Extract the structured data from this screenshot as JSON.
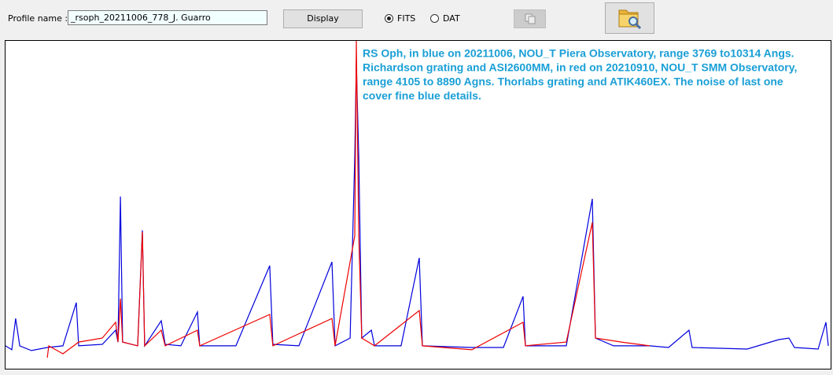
{
  "form": {
    "profile_label": "Profile name :",
    "profile_value": "_rsoph_20211006_778_J. Guarro",
    "display_button": "Display",
    "format_options": [
      "FITS",
      "DAT"
    ],
    "selected_format": "FITS"
  },
  "chart_data": {
    "type": "line",
    "annotation": [
      "RS Oph, in blue on 20211006, NOU_T Piera Observatory, range 3769 to10314 Angs.",
      "Richardson grating and ASI2600MM, in red on 20210910, NOU_T SMM Observatory,",
      "range 4105 to 8890 Agns. Thorlabs grating and ATIK460EX. The noise of last one",
      "cover fine  blue details."
    ],
    "xlim": [
      3769,
      10314
    ],
    "ylim": [
      0,
      17.29
    ],
    "series": [
      {
        "color": "#0000dd",
        "x": [
          3769,
          3819,
          3850,
          3882,
          3975,
          4101,
          4226,
          4332,
          4351,
          4539,
          4645,
          4664,
          4683,
          4701,
          4820,
          4858,
          4876,
          5008,
          5039,
          5164,
          5296,
          5314,
          5602,
          5871,
          5896,
          6103,
          6366,
          6391,
          6510,
          6547,
          6560,
          6579,
          6603,
          6679,
          6704,
          6916,
          7060,
          7085,
          7479,
          7730,
          7886,
          7905,
          8230,
          8437,
          8462,
          8606,
          8893,
          9043,
          9206,
          9231,
          9669,
          9920,
          10001,
          10045,
          10233,
          10295,
          10314
        ],
        "values": [
          1.13,
          0.92,
          2.58,
          1.13,
          0.88,
          1.04,
          1.13,
          3.42,
          1.13,
          1.21,
          1.96,
          1.33,
          9.04,
          1.33,
          1.13,
          7.25,
          1.13,
          2.46,
          1.21,
          1.13,
          2.92,
          1.13,
          1.13,
          5.38,
          1.21,
          1.13,
          5.58,
          1.13,
          1.54,
          11.13,
          16.13,
          11.13,
          1.54,
          1.96,
          1.13,
          1.13,
          5.79,
          1.13,
          1.04,
          1.04,
          3.75,
          1.13,
          1.13,
          8.92,
          1.54,
          1.13,
          1.13,
          1.04,
          1.96,
          1.04,
          0.96,
          1.46,
          1.54,
          1.04,
          0.96,
          2.38,
          1.13
        ]
      },
      {
        "color": "#ee0000",
        "x": [
          4101,
          4113,
          4226,
          4351,
          4539,
          4645,
          4664,
          4683,
          4701,
          4820,
          4858,
          4876,
          5008,
          5039,
          5296,
          5314,
          5871,
          5896,
          6366,
          6391,
          6547,
          6560,
          6579,
          6603,
          6704,
          7060,
          7085,
          7479,
          7886,
          7905,
          8230,
          8437,
          8462,
          8668,
          8893
        ],
        "values": [
          0.5,
          1.13,
          0.71,
          1.33,
          1.54,
          2.38,
          1.33,
          3.63,
          1.33,
          1.13,
          7.17,
          1.13,
          1.96,
          1.13,
          1.96,
          1.13,
          2.79,
          1.13,
          2.58,
          1.13,
          6.96,
          17.29,
          6.96,
          1.54,
          1.13,
          3.0,
          1.13,
          0.92,
          2.38,
          1.13,
          1.33,
          7.67,
          1.54,
          1.33,
          1.13
        ]
      }
    ]
  }
}
